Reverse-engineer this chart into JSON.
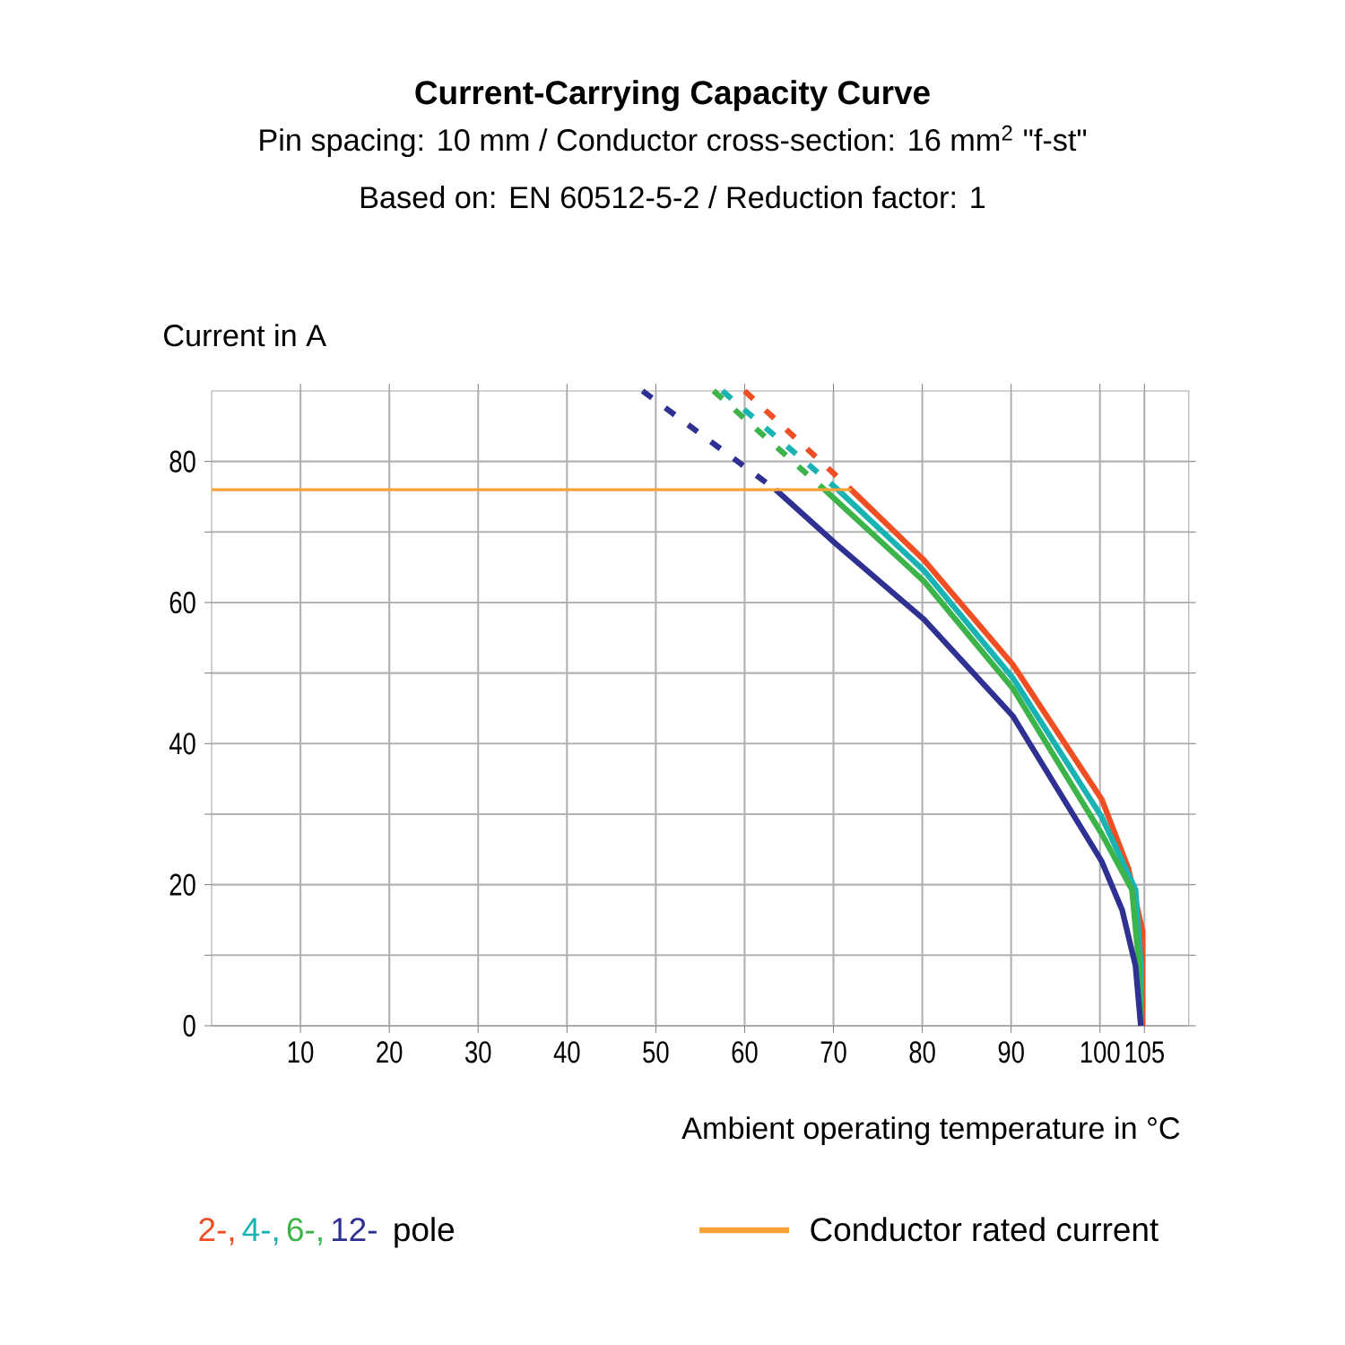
{
  "chart_data": {
    "type": "line",
    "title": "Current-Carrying Capacity Curve",
    "subtitle": "Pin spacing: 10 mm / Conductor cross-section: 16 mm$^{2}$ \"f-st\"",
    "annotations": [
      "Based on: EN 60512-5-2 / Reduction factor: 1",
      "pole"
    ],
    "xlabel": "Ambient operating temperature in °C",
    "ylabel": "Current in A",
    "xlim": [
      0,
      110
    ],
    "ylim": [
      0,
      90
    ],
    "xticks": [
      10,
      20,
      30,
      40,
      50,
      60,
      70,
      80,
      90,
      100,
      105
    ],
    "yticks": [
      0,
      {
        "value": 10,
        "label": null
      },
      20,
      {
        "value": 30,
        "label": null
      },
      40,
      {
        "value": 50,
        "label": null
      },
      60,
      {
        "value": 70,
        "label": null
      },
      80
    ],
    "grid": true,
    "legend": "bottom",
    "marker": "none",
    "series": [
      {
        "name": "2-,",
        "color": "#f04e23",
        "line_style": "solid",
        "x": [
          72,
          80.2,
          90.2,
          100.2,
          103.2,
          104.8,
          104.8
        ],
        "values": [
          76,
          66,
          51.2,
          32.1,
          22.3,
          13.4,
          0
        ]
      },
      {
        "name": "4-,",
        "color": "#1ab3b3",
        "line_style": "solid",
        "x": [
          70.5,
          80.2,
          90.2,
          100.2,
          104,
          104.6,
          104.6
        ],
        "values": [
          76,
          64.5,
          49.3,
          29.6,
          19.3,
          8.5,
          0
        ]
      },
      {
        "name": "6-,",
        "color": "#3cb44a",
        "line_style": "solid",
        "x": [
          69,
          80.2,
          90.2,
          100.2,
          103.6,
          104.4,
          104.6
        ],
        "values": [
          76,
          63,
          47.8,
          27.2,
          19.3,
          8.5,
          0
        ]
      },
      {
        "name": "12-",
        "color": "#2e3192",
        "line_style": "solid",
        "x": [
          63.5,
          70.2,
          80.2,
          90.2,
          100.2,
          102.5,
          104,
          104.6
        ],
        "values": [
          76,
          68.4,
          57.6,
          43.9,
          23.3,
          16.4,
          8.5,
          0
        ]
      },
      {
        "color": "#f04e23",
        "line_style": "dashed",
        "x": [
          60,
          72
        ],
        "values": [
          90,
          76
        ]
      },
      {
        "color": "#1ab3b3",
        "line_style": "dashed",
        "x": [
          57.5,
          70.5
        ],
        "values": [
          90,
          76
        ]
      },
      {
        "color": "#3cb44a",
        "line_style": "dashed",
        "x": [
          56.5,
          69
        ],
        "values": [
          90,
          76
        ]
      },
      {
        "color": "#2e3192",
        "line_style": "dashed",
        "x": [
          48.5,
          63.5
        ],
        "values": [
          90,
          76
        ]
      },
      {
        "name": "Conductor rated current",
        "color": "#f7a234",
        "line_style": "solid",
        "x": [
          0,
          72
        ],
        "values": [
          76,
          76
        ]
      }
    ]
  }
}
